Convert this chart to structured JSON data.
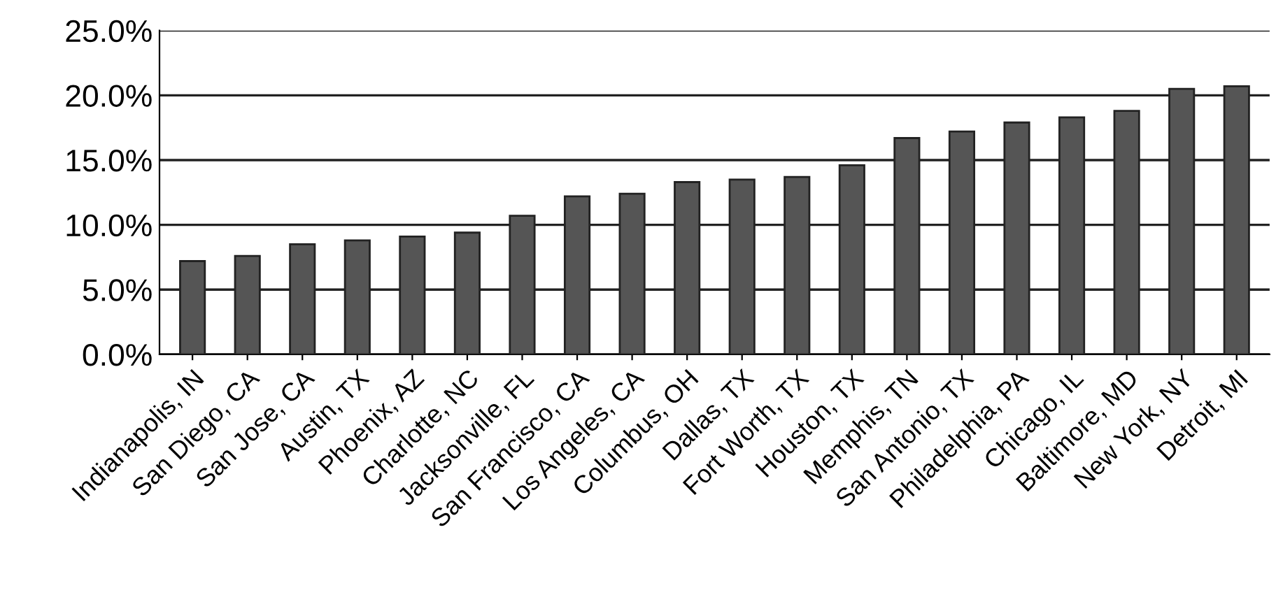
{
  "chart_data": {
    "type": "bar",
    "categories": [
      "Indianapolis, IN",
      "San Diego, CA",
      "San Jose, CA",
      "Austin, TX",
      "Phoenix, AZ",
      "Charlotte, NC",
      "Jacksonville, FL",
      "San Francisco, CA",
      "Los Angeles, CA",
      "Columbus, OH",
      "Dallas, TX",
      "Fort Worth, TX",
      "Houston, TX",
      "Memphis, TN",
      "San Antonio, TX",
      "Philadelphia, PA",
      "Chicago, IL",
      "Baltimore, MD",
      "New York, NY",
      "Detroit, MI"
    ],
    "values": [
      7.2,
      7.6,
      8.5,
      8.8,
      9.1,
      9.4,
      10.7,
      12.2,
      12.4,
      13.3,
      13.5,
      13.7,
      14.6,
      16.7,
      17.2,
      17.9,
      18.3,
      18.8,
      20.5,
      20.7
    ],
    "color": "#555555",
    "ylim": [
      0,
      25
    ],
    "yticks": [
      {
        "value": 0,
        "label": "0.0%"
      },
      {
        "value": 5,
        "label": "5.0%"
      },
      {
        "value": 10,
        "label": "10.0%"
      },
      {
        "value": 15,
        "label": "15.0%"
      },
      {
        "value": 20,
        "label": "20.0%"
      },
      {
        "value": 25,
        "label": "25.0%"
      }
    ],
    "grid": "y",
    "legend": false
  }
}
